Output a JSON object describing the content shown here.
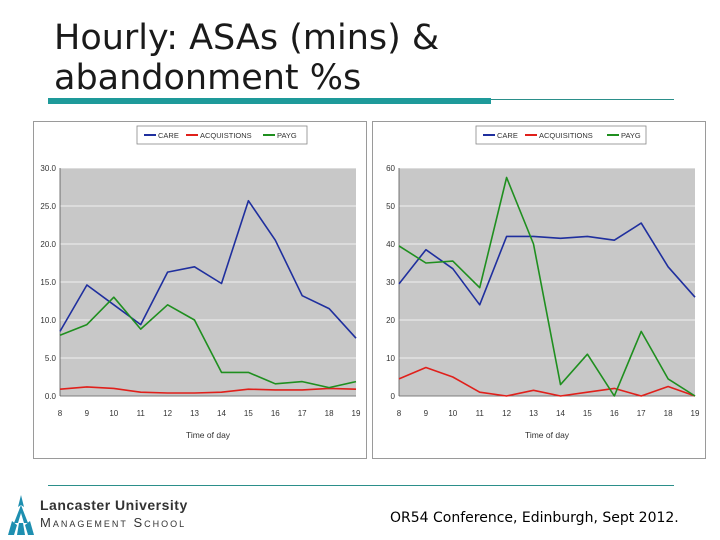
{
  "slide": {
    "title": "Hourly: ASAs (mins) & abandonment %s",
    "footer": "OR54 Conference, Edinburgh, Sept 2012.",
    "logo": {
      "line1": "Lancaster University",
      "line2": "Management School"
    }
  },
  "colors": {
    "care": "#1f2f9e",
    "acquisitions": "#e0201b",
    "payg": "#1f8f1f",
    "plot_bg": "#c8c8c8",
    "accent": "#1e9a9a"
  },
  "chart_data": [
    {
      "type": "line",
      "categories": [
        "8",
        "9",
        "10",
        "11",
        "12",
        "13",
        "14",
        "15",
        "16",
        "17",
        "18",
        "19"
      ],
      "xlabel": "Time of day",
      "ylabel": "",
      "ylim": [
        0,
        30
      ],
      "yticks": [
        "0.0",
        "5.0",
        "10.0",
        "15.0",
        "20.0",
        "25.0",
        "30.0"
      ],
      "grid": true,
      "legend": "top",
      "series": [
        {
          "name": "CARE",
          "values": [
            8.5,
            14.6,
            12.0,
            9.4,
            16.3,
            17.0,
            14.8,
            25.7,
            20.5,
            13.2,
            11.5,
            7.6
          ]
        },
        {
          "name": "ACQUISTIONS",
          "values": [
            0.9,
            1.2,
            1.0,
            0.5,
            0.4,
            0.4,
            0.5,
            0.9,
            0.8,
            0.8,
            1.0,
            0.9
          ]
        },
        {
          "name": "PAYG",
          "values": [
            8.0,
            9.4,
            13.0,
            8.8,
            12.0,
            10.0,
            3.1,
            3.1,
            1.6,
            1.9,
            1.1,
            1.9
          ]
        }
      ]
    },
    {
      "type": "line",
      "categories": [
        "8",
        "9",
        "10",
        "11",
        "12",
        "13",
        "14",
        "15",
        "16",
        "17",
        "18",
        "19"
      ],
      "xlabel": "Time of day",
      "ylabel": "",
      "ylim": [
        0,
        60
      ],
      "yticks": [
        "0",
        "10",
        "20",
        "30",
        "40",
        "50",
        "60"
      ],
      "grid": true,
      "legend": "top",
      "series": [
        {
          "name": "CARE",
          "values": [
            29.5,
            38.5,
            33.5,
            24.0,
            42.0,
            42.0,
            41.5,
            42.0,
            41.0,
            45.5,
            34.0,
            26.0
          ]
        },
        {
          "name": "ACQUISITIONS",
          "values": [
            4.5,
            7.5,
            5.0,
            1.0,
            0.0,
            1.5,
            0.0,
            1.0,
            2.0,
            0.0,
            2.5,
            0.0
          ]
        },
        {
          "name": "PAYG",
          "values": [
            39.5,
            35.0,
            35.5,
            28.5,
            57.5,
            40.0,
            3.0,
            11.0,
            0.0,
            17.0,
            4.5,
            0.0
          ]
        }
      ]
    }
  ]
}
